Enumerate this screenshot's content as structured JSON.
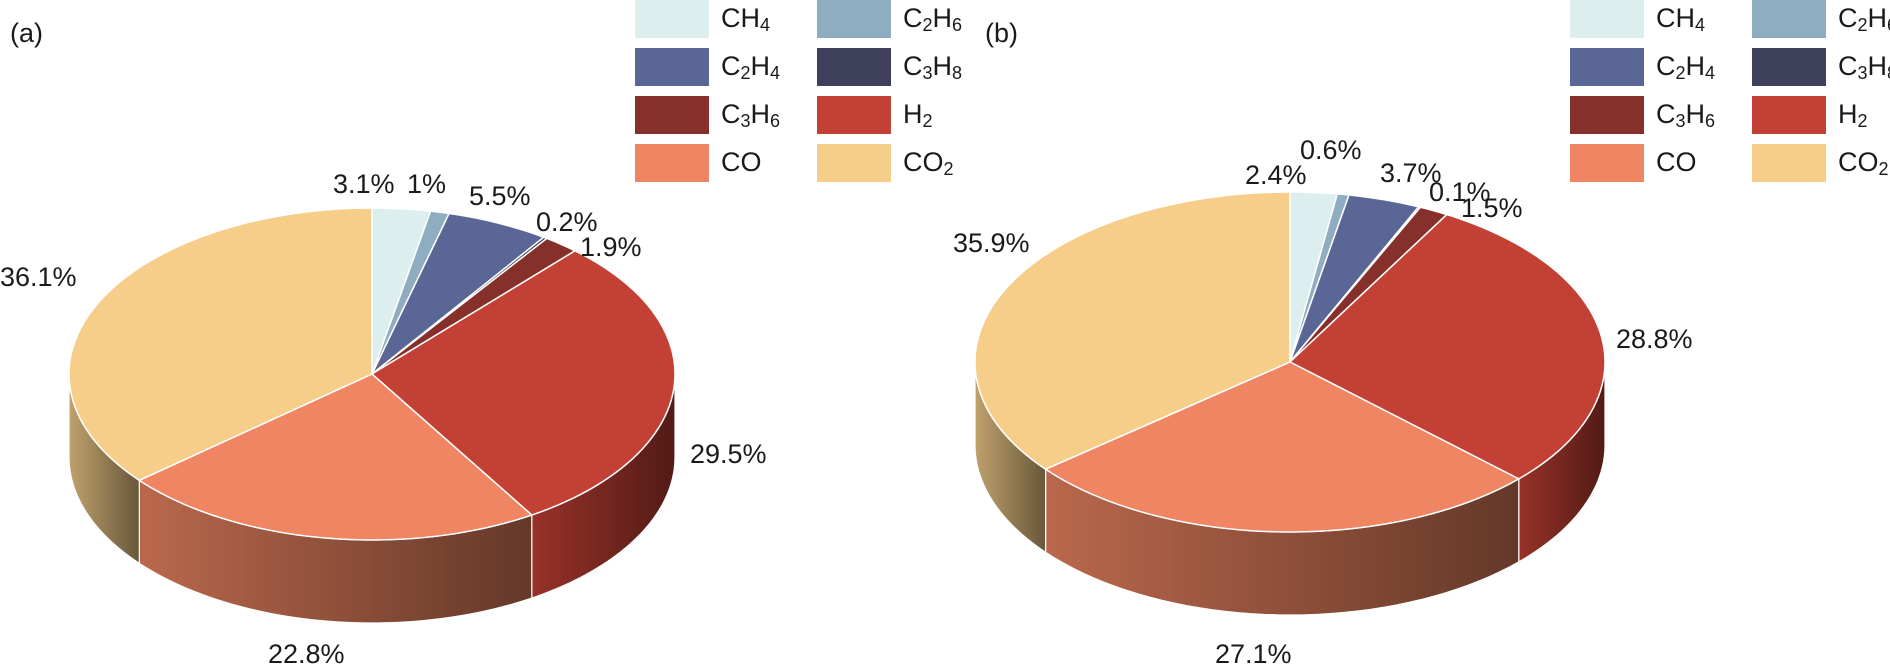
{
  "colors": {
    "CH4": "#dcefee",
    "C2H6": "#8fadc0",
    "C2H4": "#5a6796",
    "C3H8": "#3e3f5a",
    "C3H6": "#86302b",
    "H2": "#c34034",
    "CO": "#ef8562",
    "CO2": "#f6ce8a"
  },
  "legend": [
    {
      "key": "CH4",
      "base": "CH",
      "sub": "4",
      "tail": "",
      "tailsub": ""
    },
    {
      "key": "C2H6",
      "base": "C",
      "sub": "2",
      "tail": "H",
      "tailsub": "6"
    },
    {
      "key": "C2H4",
      "base": "C",
      "sub": "2",
      "tail": "H",
      "tailsub": "4"
    },
    {
      "key": "C3H8",
      "base": "C",
      "sub": "3",
      "tail": "H",
      "tailsub": "8"
    },
    {
      "key": "C3H6",
      "base": "C",
      "sub": "3",
      "tail": "H",
      "tailsub": "6"
    },
    {
      "key": "H2",
      "base": "H",
      "sub": "2",
      "tail": "",
      "tailsub": ""
    },
    {
      "key": "CO",
      "base": "CO",
      "sub": "",
      "tail": "",
      "tailsub": ""
    },
    {
      "key": "CO2",
      "base": "CO",
      "sub": "2",
      "tail": "",
      "tailsub": ""
    }
  ],
  "chart_data": [
    {
      "type": "pie",
      "panel": "(a)",
      "categories": [
        "CH4",
        "C2H6",
        "C2H4",
        "C3H8",
        "C3H6",
        "H2",
        "CO",
        "CO2"
      ],
      "values": [
        3.1,
        1,
        5.5,
        0.2,
        1.9,
        29.5,
        22.8,
        36.1
      ],
      "labels": [
        "3.1%",
        "1%",
        "5.5%",
        "0.2%",
        "1.9%",
        "29.5%",
        "22.8%",
        "36.1%"
      ],
      "style": "3d",
      "legend_position": "top-right"
    },
    {
      "type": "pie",
      "panel": "(b)",
      "categories": [
        "CH4",
        "C2H6",
        "C2H4",
        "C3H8",
        "C3H6",
        "H2",
        "CO",
        "CO2"
      ],
      "values": [
        2.4,
        0.6,
        3.7,
        0.1,
        1.5,
        28.8,
        27.1,
        35.9
      ],
      "labels": [
        "2.4%",
        "0.6%",
        "3.7%",
        "0.1%",
        "1.5%",
        "28.8%",
        "27.1%",
        "35.9%"
      ],
      "style": "3d",
      "legend_position": "top-right"
    }
  ]
}
